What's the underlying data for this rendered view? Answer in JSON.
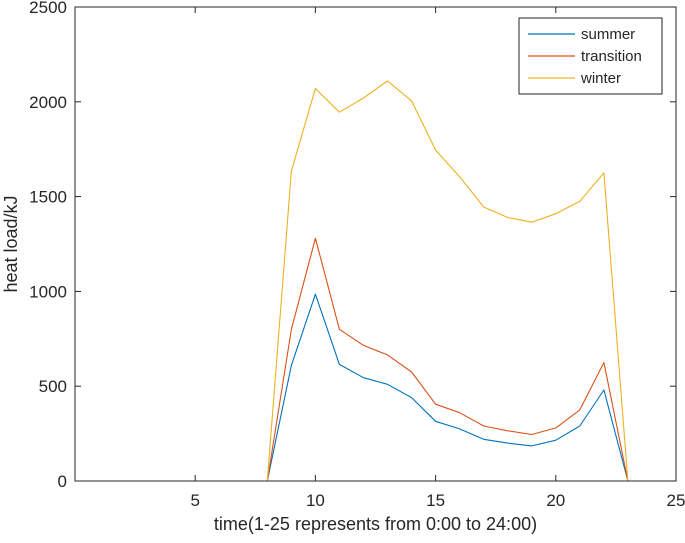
{
  "chart_data": {
    "type": "line",
    "title": "",
    "xlabel": "time(1-25 represents from 0:00 to 24:00)",
    "ylabel": "heat load/kJ",
    "xlim": [
      0,
      25
    ],
    "ylim": [
      0,
      2500
    ],
    "xticks": [
      5,
      10,
      15,
      20,
      25
    ],
    "yticks": [
      0,
      500,
      1000,
      1500,
      2000,
      2500
    ],
    "grid": false,
    "legend_position": "top-right",
    "x": [
      1,
      2,
      3,
      4,
      5,
      6,
      7,
      8,
      9,
      10,
      11,
      12,
      13,
      14,
      15,
      16,
      17,
      18,
      19,
      20,
      21,
      22,
      23,
      24,
      25
    ],
    "series": [
      {
        "name": "summer",
        "color": "#0072BD",
        "values": [
          0,
          0,
          0,
          0,
          0,
          0,
          0,
          0,
          610,
          985,
          615,
          545,
          510,
          440,
          315,
          275,
          220,
          200,
          185,
          215,
          290,
          480,
          0,
          0,
          0
        ]
      },
      {
        "name": "transition",
        "color": "#D95319",
        "values": [
          0,
          0,
          0,
          0,
          0,
          0,
          0,
          0,
          800,
          1280,
          800,
          715,
          665,
          575,
          405,
          360,
          290,
          265,
          245,
          280,
          375,
          625,
          0,
          0,
          0
        ]
      },
      {
        "name": "winter",
        "color": "#EDB120",
        "values": [
          0,
          0,
          0,
          0,
          0,
          0,
          0,
          0,
          1635,
          2070,
          1945,
          2020,
          2110,
          2005,
          1745,
          1605,
          1445,
          1390,
          1365,
          1410,
          1475,
          1625,
          0,
          0,
          0
        ]
      }
    ]
  }
}
